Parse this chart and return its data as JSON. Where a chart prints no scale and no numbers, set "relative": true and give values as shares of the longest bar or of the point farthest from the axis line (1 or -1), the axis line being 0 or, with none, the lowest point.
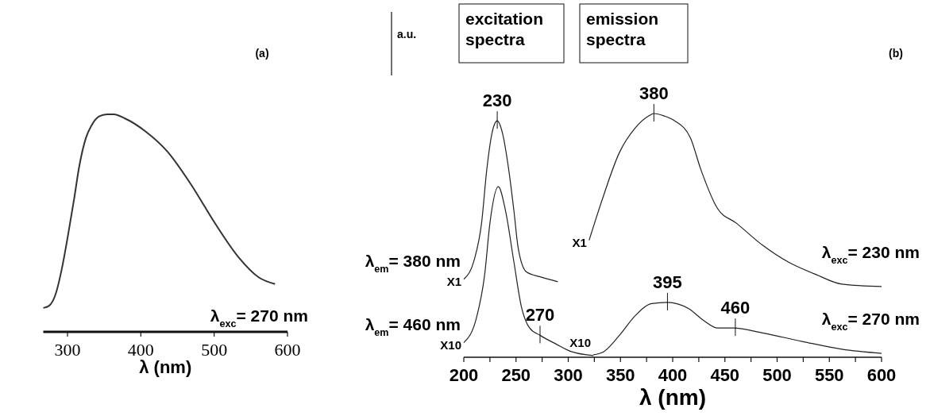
{
  "chart_data": [
    {
      "type": "line",
      "title": "(a)",
      "xlabel": "λ (nm)",
      "relative": true,
      "xlim": [
        267,
        600
      ],
      "xticks": [
        300,
        400,
        500,
        600
      ],
      "series": [
        {
          "name": "λ$_{exc}$= 270 nm",
          "color": "#333333",
          "x": [
            267,
            275,
            284,
            292,
            300,
            309,
            316,
            325,
            333,
            343,
            354,
            363,
            379,
            407,
            436,
            468,
            501,
            534,
            561,
            583
          ],
          "values": [
            0.11,
            0.12,
            0.175,
            0.285,
            0.43,
            0.61,
            0.76,
            0.89,
            0.95,
            0.99,
            1,
            1,
            0.98,
            0.92,
            0.83,
            0.68,
            0.5,
            0.34,
            0.25,
            0.22
          ]
        }
      ]
    },
    {
      "type": "line",
      "title": "(b)",
      "xlabel": "λ (nm)",
      "ylabel": "a.u.",
      "relative": true,
      "xlim": [
        200,
        600
      ],
      "xticks": [
        200,
        {
          "value": 225,
          "label": null
        },
        250,
        {
          "value": 275,
          "label": null
        },
        300,
        {
          "value": 325,
          "label": null
        },
        350,
        {
          "value": 375,
          "label": null
        },
        400,
        {
          "value": 425,
          "label": null
        },
        450,
        {
          "value": 475,
          "label": null
        },
        500,
        {
          "value": 525,
          "label": null
        },
        550,
        {
          "value": 575,
          "label": null
        },
        600
      ],
      "series": [
        {
          "name": "λ$_{em}$= 380 nm",
          "color": "#222222",
          "x": [
            200,
            210,
            217,
            222,
            227,
            232,
            237,
            243,
            248,
            252,
            260,
            273,
            290
          ],
          "values": [
            0.32,
            0.4,
            0.55,
            0.77,
            0.92,
            0.97,
            0.92,
            0.77,
            0.6,
            0.45,
            0.35,
            0.33,
            0.31
          ]
        },
        {
          "name": "λ$_{em}$= 460 nm",
          "color": "#222222",
          "x": [
            200,
            212,
            220,
            225,
            233,
            240,
            248,
            255,
            263,
            273,
            288,
            303,
            324
          ],
          "values": [
            0.06,
            0.16,
            0.34,
            0.55,
            0.7,
            0.6,
            0.39,
            0.21,
            0.12,
            0.09,
            0.055,
            0.023,
            0.007
          ]
        },
        {
          "name": "λ$_{exc}$= 230 nm",
          "color": "#222222",
          "x": [
            320,
            332,
            349,
            364,
            377,
            382,
            392,
            402,
            417,
            427,
            443,
            461,
            486,
            511,
            537,
            562,
            600
          ],
          "values": [
            0.48,
            0.64,
            0.84,
            0.94,
            0.99,
            1,
            0.99,
            0.97,
            0.9,
            0.77,
            0.61,
            0.55,
            0.46,
            0.39,
            0.34,
            0.3,
            0.29
          ]
        },
        {
          "name": "λ$_{exc}$= 270 nm",
          "color": "#222222",
          "x": [
            324,
            334,
            349,
            364,
            380,
            395,
            415,
            430,
            443,
            458,
            486,
            524,
            562,
            600
          ],
          "values": [
            0.01,
            0.023,
            0.09,
            0.17,
            0.22,
            0.225,
            0.2,
            0.15,
            0.12,
            0.12,
            0.1,
            0.065,
            0.033,
            0.016
          ]
        }
      ],
      "annotations": [
        "excitation spectra",
        "emission spectra",
        {
          "text": "230",
          "x": 232,
          "y": 0.97
        },
        {
          "text": "380",
          "x": 382,
          "y": 1
        },
        {
          "text": "395",
          "x": 395,
          "y": 0.225
        },
        {
          "text": "460",
          "x": 460,
          "y": 0.12
        },
        {
          "text": "270",
          "x": 273,
          "y": 0.09
        },
        {
          "text": "X1",
          "x": 200,
          "y": 0.32
        },
        {
          "text": "X10",
          "x": 200,
          "y": 0.06
        },
        {
          "text": "X1",
          "x": 320,
          "y": 0.48
        },
        {
          "text": "X10",
          "x": 324,
          "y": 0.01
        }
      ]
    }
  ]
}
